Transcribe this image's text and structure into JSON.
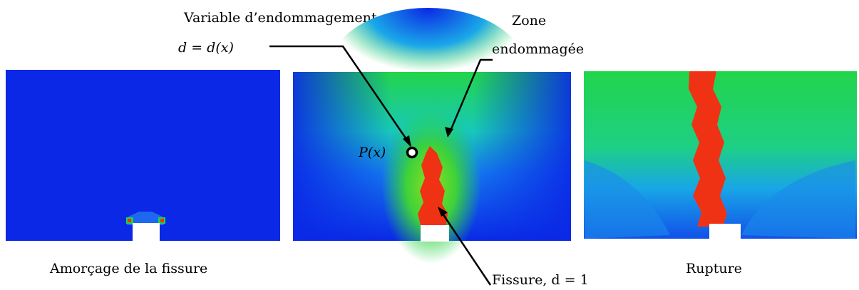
{
  "labels": {
    "variable_line1": "Variable  d’endommagement,",
    "variable_line2": "d = d(x)",
    "zone_line1": "Zone",
    "zone_line2": "endommagée",
    "point": "P(x)",
    "crack": "Fissure, d = 1"
  },
  "captions": {
    "initiation": "Amorçage de la fissure",
    "rupture": "Rupture"
  },
  "colors": {
    "damage_low": "#0a28e6",
    "damage_mid": "#1ed246",
    "damage_high": "#f03214",
    "specimen_notch": "#ffffff"
  }
}
